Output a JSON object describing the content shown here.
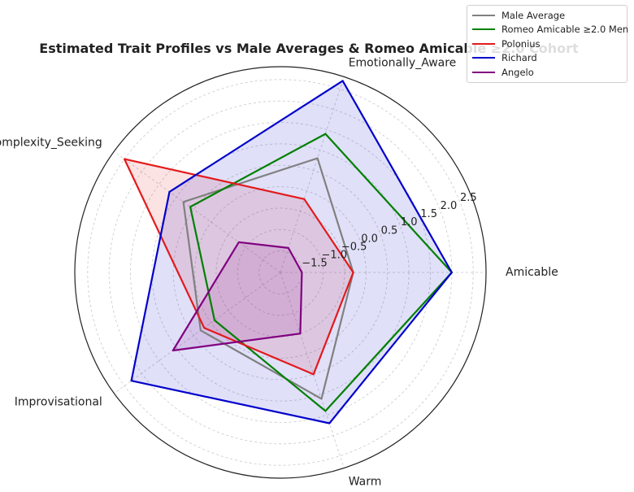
{
  "chart_data": {
    "type": "radar",
    "title": "Estimated Trait Profiles vs Male Averages & Romeo Amicable ≥2.0 Cohort",
    "categories": [
      "Amicable",
      "Emotionally_Aware",
      "Complexity_Seeking",
      "Improvisational",
      "Warm"
    ],
    "radial_ticks": [
      -1.5,
      -1.0,
      -0.5,
      0.0,
      0.5,
      1.0,
      1.5,
      2.0,
      2.5
    ],
    "radial_tick_labels": [
      "−1.5",
      "−1.0",
      "−0.5",
      "0.0",
      "0.5",
      "1.0",
      "1.5",
      "2.0",
      "2.5"
    ],
    "rlim": [
      -2.0,
      2.8
    ],
    "grid": true,
    "legend_position": "top-right",
    "series": [
      {
        "name": "Male Average",
        "color": "#808080",
        "fill": false,
        "values": [
          -0.3,
          0.8,
          0.8,
          0.3,
          1.1
        ]
      },
      {
        "name": "Romeo Amicable ≥2.0 Men",
        "color": "#008000",
        "fill": false,
        "values": [
          2.0,
          1.4,
          0.6,
          -0.1,
          1.4
        ]
      },
      {
        "name": "Polonius",
        "color": "#e31a1c",
        "fill": true,
        "values": [
          -0.3,
          -0.2,
          2.5,
          0.2,
          0.5
        ]
      },
      {
        "name": "Richard",
        "color": "#0000cc",
        "fill": true,
        "values": [
          2.0,
          2.7,
          1.2,
          2.3,
          1.7
        ]
      },
      {
        "name": "Angelo",
        "color": "#800080",
        "fill": true,
        "values": [
          -1.5,
          -1.4,
          -0.8,
          1.1,
          -0.5
        ]
      }
    ]
  }
}
